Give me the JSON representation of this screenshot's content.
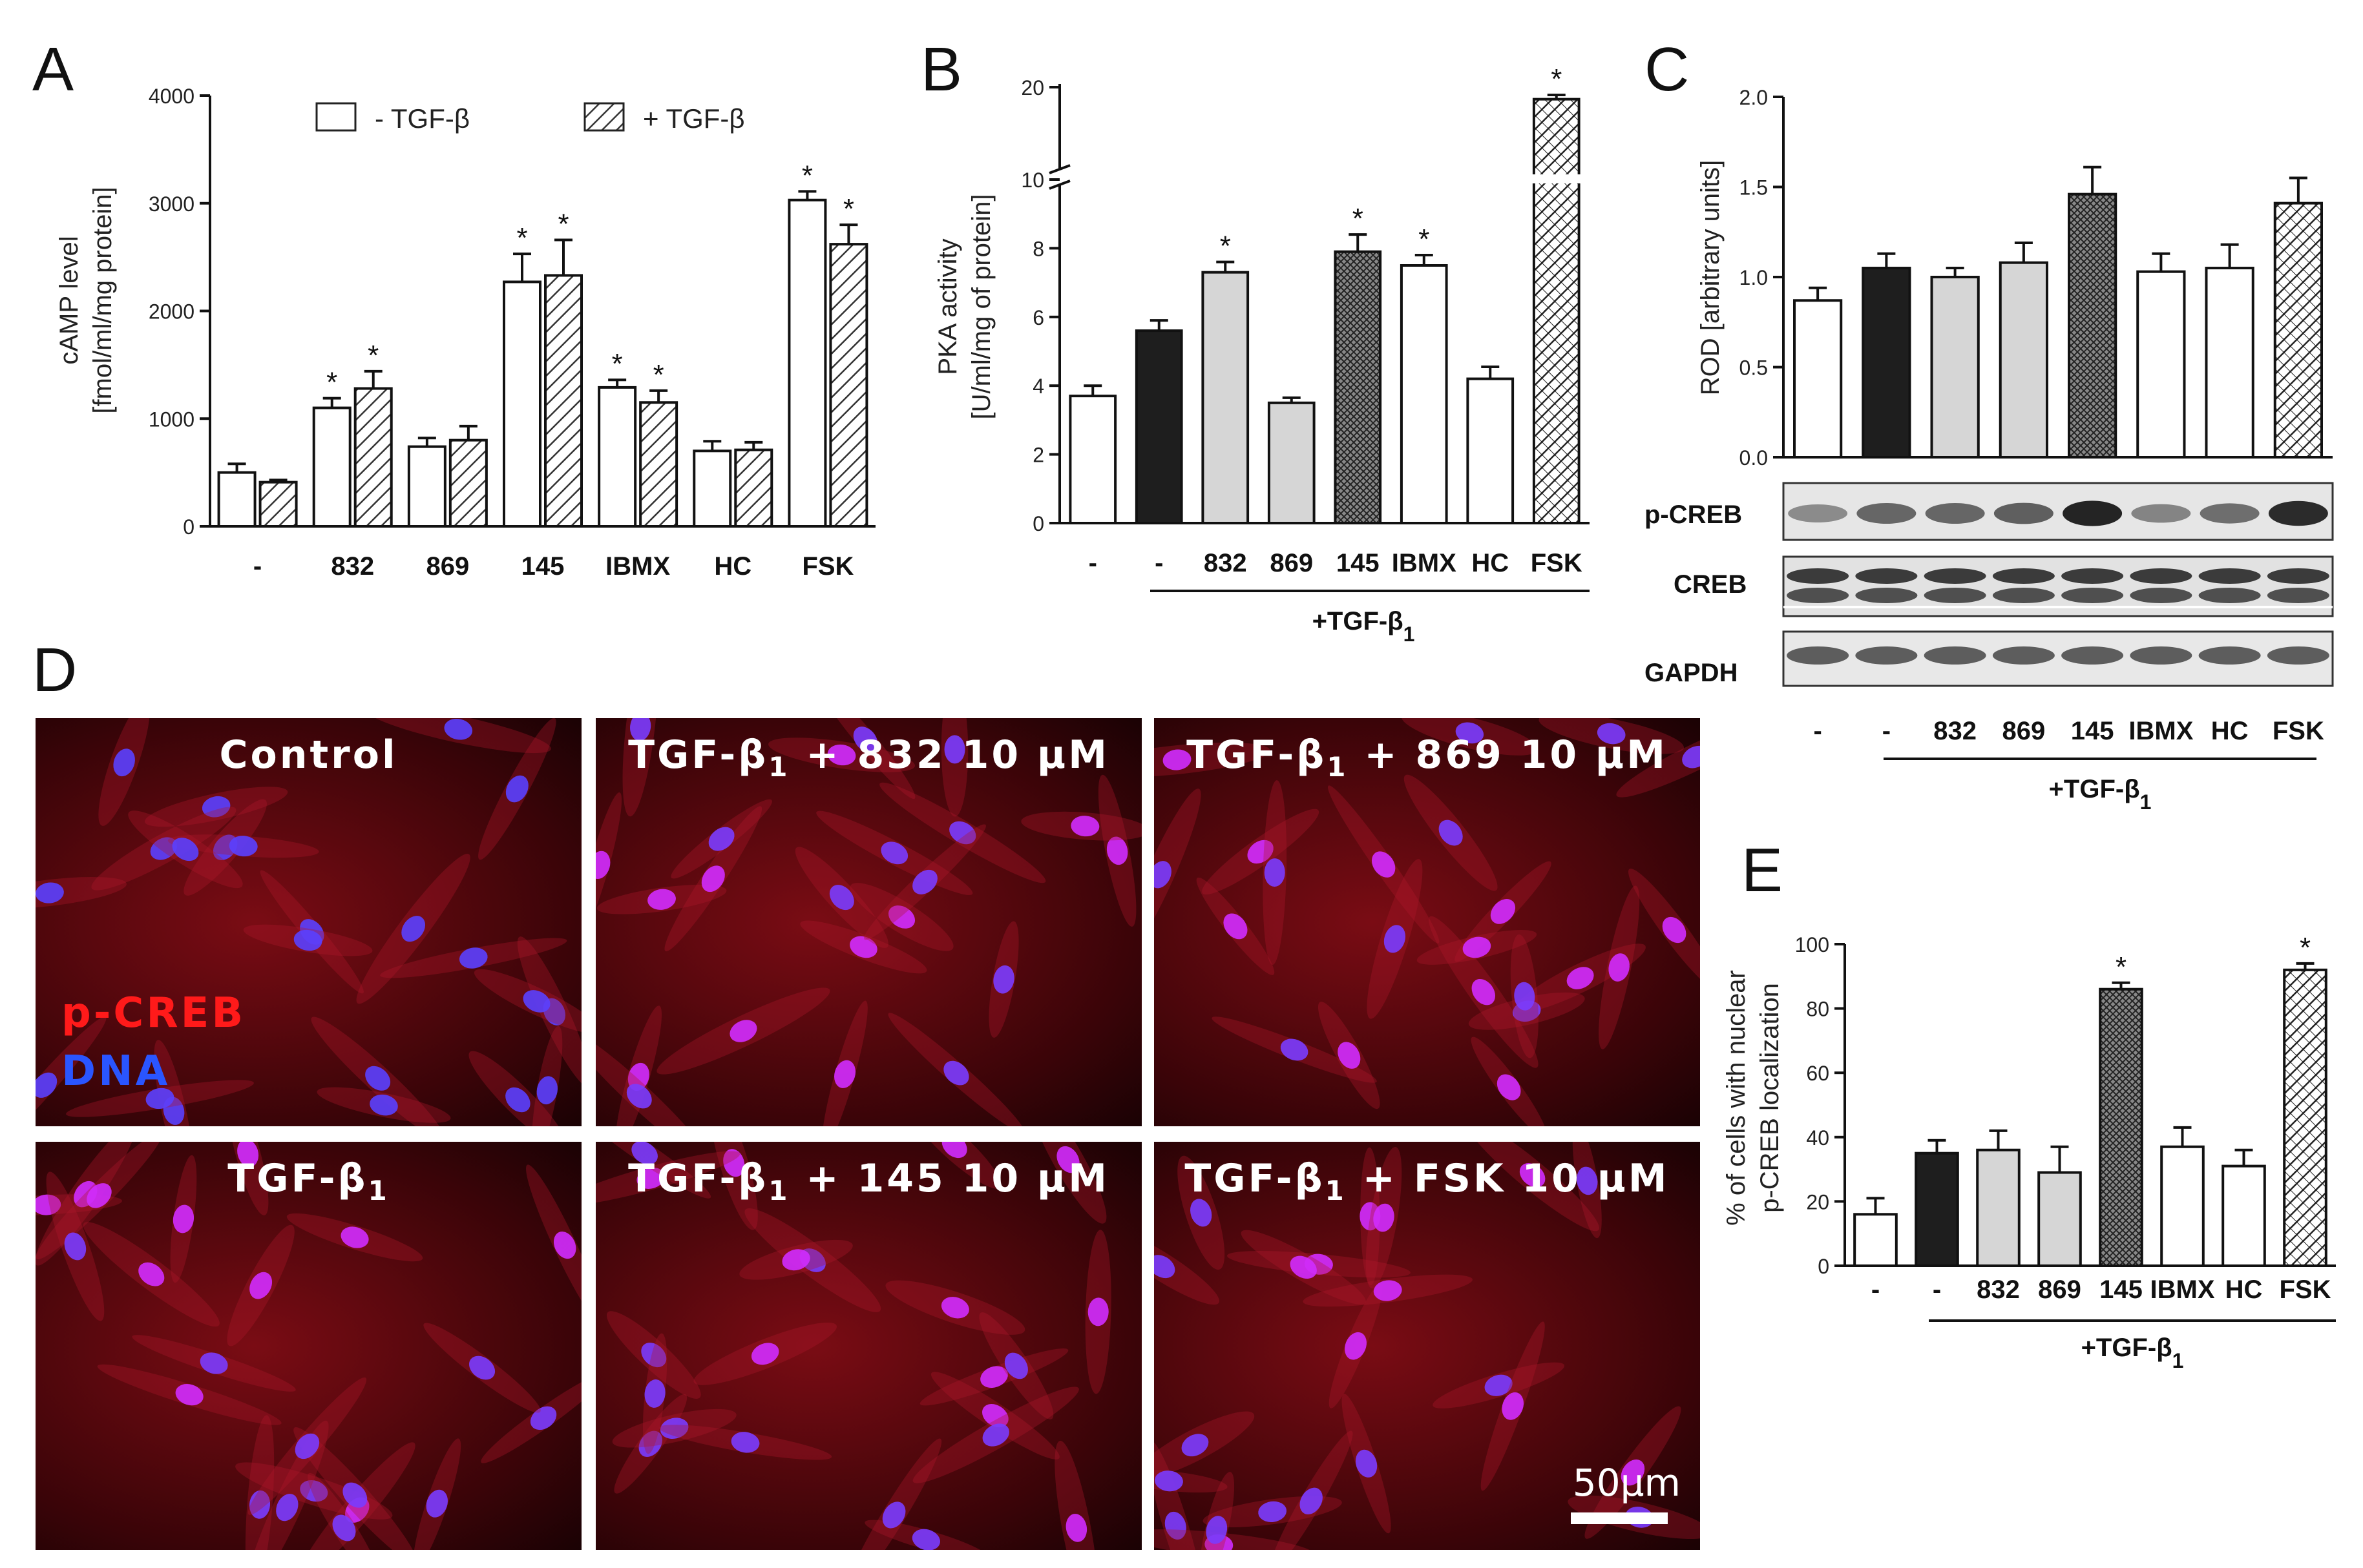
{
  "panel_letters": {
    "a": "A",
    "b": "B",
    "c": "C",
    "d": "D",
    "e": "E"
  },
  "tgf_group_label": "+TGF-β",
  "tgf_group_sub": "1",
  "chart_data": [
    {
      "panel": "A",
      "type": "bar",
      "ylabel": "cAMP level",
      "ylabel2": "[fmol/ml/mg protein]",
      "ylim": [
        0,
        4000
      ],
      "yticks": [
        0,
        1000,
        2000,
        3000,
        4000
      ],
      "categories": [
        "-",
        "832",
        "869",
        "145",
        "IBMX",
        "HC",
        "FSK"
      ],
      "series": [
        {
          "name": "- TGF-β",
          "values": [
            500,
            1100,
            740,
            2270,
            1290,
            700,
            3030
          ],
          "errors": [
            80,
            90,
            80,
            260,
            70,
            90,
            80
          ],
          "sig": [
            false,
            true,
            false,
            true,
            true,
            false,
            true
          ]
        },
        {
          "name": "+ TGF-β",
          "values": [
            410,
            1280,
            800,
            2330,
            1150,
            710,
            2620
          ],
          "errors": [
            20,
            160,
            130,
            330,
            110,
            70,
            180
          ],
          "sig": [
            false,
            true,
            false,
            true,
            true,
            false,
            true
          ]
        }
      ],
      "legend": "top"
    },
    {
      "panel": "B",
      "type": "bar",
      "ylabel": "PKA activity",
      "ylabel2": "[U/ml/mg of protein]",
      "yticks": [
        0,
        2,
        4,
        6,
        8,
        10,
        20
      ],
      "axis_break": [
        10,
        20
      ],
      "categories": [
        "-",
        "-",
        "832",
        "869",
        "145",
        "IBMX",
        "HC",
        "FSK"
      ],
      "values": [
        3.7,
        5.6,
        7.3,
        3.5,
        7.9,
        7.5,
        4.2,
        18.6
      ],
      "errors": [
        0.3,
        0.3,
        0.3,
        0.15,
        0.5,
        0.3,
        0.35,
        0.5
      ],
      "sig": [
        false,
        false,
        true,
        false,
        true,
        true,
        false,
        true
      ],
      "fills": [
        "white",
        "black",
        "gray",
        "gray",
        "cross",
        "white",
        "white",
        "hatch"
      ]
    },
    {
      "panel": "C",
      "type": "bar",
      "ylabel": "ROD [arbitrary units]",
      "ylim": [
        0,
        2.0
      ],
      "yticks": [
        "0.0",
        "0.5",
        "1.0",
        "1.5",
        "2.0"
      ],
      "categories": [
        "-",
        "-",
        "832",
        "869",
        "145",
        "IBMX",
        "HC",
        "FSK"
      ],
      "values": [
        0.87,
        1.05,
        1.0,
        1.08,
        1.46,
        1.03,
        1.05,
        1.41
      ],
      "errors": [
        0.07,
        0.08,
        0.05,
        0.11,
        0.15,
        0.1,
        0.13,
        0.14
      ],
      "fills": [
        "white",
        "black",
        "gray",
        "gray",
        "cross",
        "white",
        "white",
        "hatch"
      ],
      "blot_labels": [
        "p-CREB",
        "CREB",
        "GAPDH"
      ]
    },
    {
      "panel": "E",
      "type": "bar",
      "ylabel": "% of cells with nuclear",
      "ylabel2": "p-CREB localization",
      "ylim": [
        0,
        100
      ],
      "yticks": [
        0,
        20,
        40,
        60,
        80,
        100
      ],
      "categories": [
        "-",
        "-",
        "832",
        "869",
        "145",
        "IBMX",
        "HC",
        "FSK"
      ],
      "values": [
        16,
        35,
        36,
        29,
        86,
        37,
        31,
        92
      ],
      "errors": [
        5,
        4,
        6,
        8,
        2,
        6,
        5,
        2
      ],
      "sig": [
        false,
        false,
        false,
        false,
        true,
        false,
        false,
        true
      ],
      "fills": [
        "white",
        "black",
        "gray",
        "gray",
        "cross",
        "white",
        "white",
        "hatch"
      ]
    }
  ],
  "micrographs": [
    {
      "label": "Control"
    },
    {
      "label": "TGF-β",
      "sub": "1",
      "rest": " + 832 10 μM"
    },
    {
      "label": "TGF-β",
      "sub": "1",
      "rest": " + 869 10 μM"
    },
    {
      "label": "TGF-β",
      "sub": "1",
      "rest": ""
    },
    {
      "label": "TGF-β",
      "sub": "1",
      "rest": " + 145 10 μM"
    },
    {
      "label": "TGF-β",
      "sub": "1",
      "rest": " + FSK 10 μM"
    }
  ],
  "stain_labels": {
    "pcreb": "p-CREB",
    "dna": "DNA"
  },
  "scale_bar": "50μm",
  "colors": {
    "bar_black": "#1e1e1e",
    "bar_gray": "#d6d6d6",
    "micro_bg": "#3a0408",
    "nucleus": "#7a3cff",
    "pcreb_text": "#ff1a1a",
    "dna_text": "#2a55ff"
  }
}
